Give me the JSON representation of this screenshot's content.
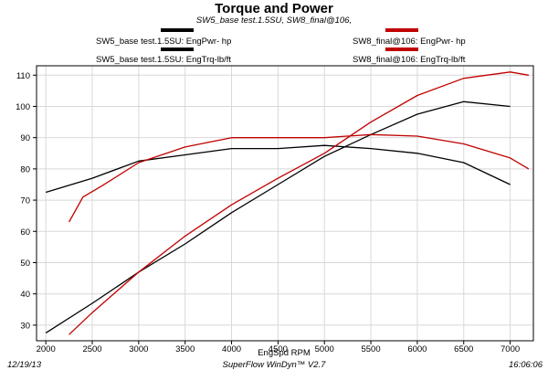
{
  "chart_data": {
    "type": "line",
    "title": "Torque and Power",
    "subtitle": "SW5_base test.1.5SU, SW8_final@106,",
    "xlabel": "EngSpd  RPM",
    "ylabel": "",
    "xlim": [
      1900,
      7250
    ],
    "ylim": [
      25,
      113
    ],
    "xticks": [
      2000,
      2500,
      3000,
      3500,
      4000,
      4500,
      5000,
      5500,
      6000,
      6500,
      7000
    ],
    "yticks": [
      30,
      40,
      50,
      60,
      70,
      80,
      90,
      100,
      110
    ],
    "grid": true,
    "series": [
      {
        "name": "SW5_base test.1.5SU: EngPwr-  hp",
        "color": "#000000",
        "x": [
          2000,
          2500,
          3000,
          3500,
          4000,
          4500,
          5000,
          5500,
          6000,
          6500,
          7000
        ],
        "y": [
          27.5,
          37,
          47,
          56,
          66,
          75,
          84,
          91,
          97.5,
          101.5,
          100
        ]
      },
      {
        "name": "SW5_base test.1.5SU: EngTrq-lb/ft",
        "color": "#000000",
        "x": [
          2000,
          2500,
          3000,
          3500,
          4000,
          4500,
          5000,
          5500,
          6000,
          6500,
          7000
        ],
        "y": [
          72.5,
          77,
          82.5,
          84.5,
          86.5,
          86.5,
          87.5,
          86.5,
          85,
          82,
          75
        ]
      },
      {
        "name": "SW8_final@106: EngPwr-  hp",
        "color": "#c00000",
        "x": [
          2250,
          2500,
          3000,
          3500,
          4000,
          4500,
          5000,
          5500,
          6000,
          6500,
          7000,
          7200
        ],
        "y": [
          27,
          34,
          47,
          58.5,
          68.5,
          77,
          85,
          95,
          103.5,
          109,
          111,
          110
        ]
      },
      {
        "name": "SW8_final@106: EngTrq-lb/ft",
        "color": "#c00000",
        "x": [
          2250,
          2400,
          2600,
          3000,
          3500,
          4000,
          4500,
          5000,
          5500,
          6000,
          6500,
          7000,
          7200
        ],
        "y": [
          63,
          71,
          74.5,
          82,
          87,
          90,
          90,
          90,
          91,
          90.5,
          88,
          83.5,
          80
        ]
      }
    ],
    "footer": {
      "date": "12/19/13",
      "software": "SuperFlow WinDyn™ V2.7",
      "time": "16:06:06"
    }
  }
}
